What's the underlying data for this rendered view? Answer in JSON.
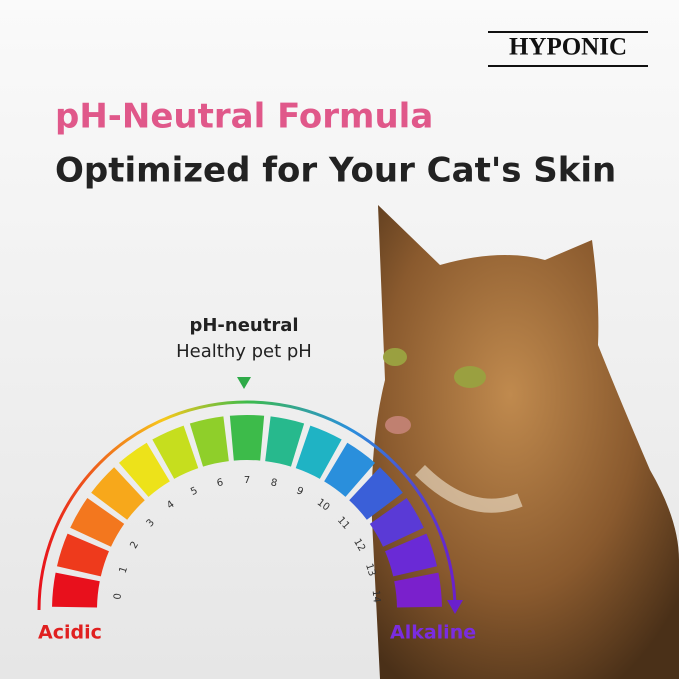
{
  "brand": "HYPONIC",
  "headline": {
    "line1": "pH-Neutral Formula",
    "line2": "Optimized for Your Cat's Skin"
  },
  "pointer": {
    "title": "pH-neutral",
    "subtitle": "Healthy pet pH"
  },
  "scale": {
    "labels": [
      0,
      1,
      2,
      3,
      4,
      5,
      6,
      7,
      8,
      9,
      10,
      11,
      12,
      13,
      14
    ],
    "colors": [
      "#e8101c",
      "#ee3a1c",
      "#f3771e",
      "#f7a81b",
      "#ede21a",
      "#c6de1e",
      "#8fcf2a",
      "#3dbb4a",
      "#27b98d",
      "#1fb3c4",
      "#2a8fdc",
      "#3a5fd8",
      "#5a3ad6",
      "#6a2ad6",
      "#7a20cc"
    ],
    "left_label": "Acidic",
    "right_label": "Alkaline"
  }
}
